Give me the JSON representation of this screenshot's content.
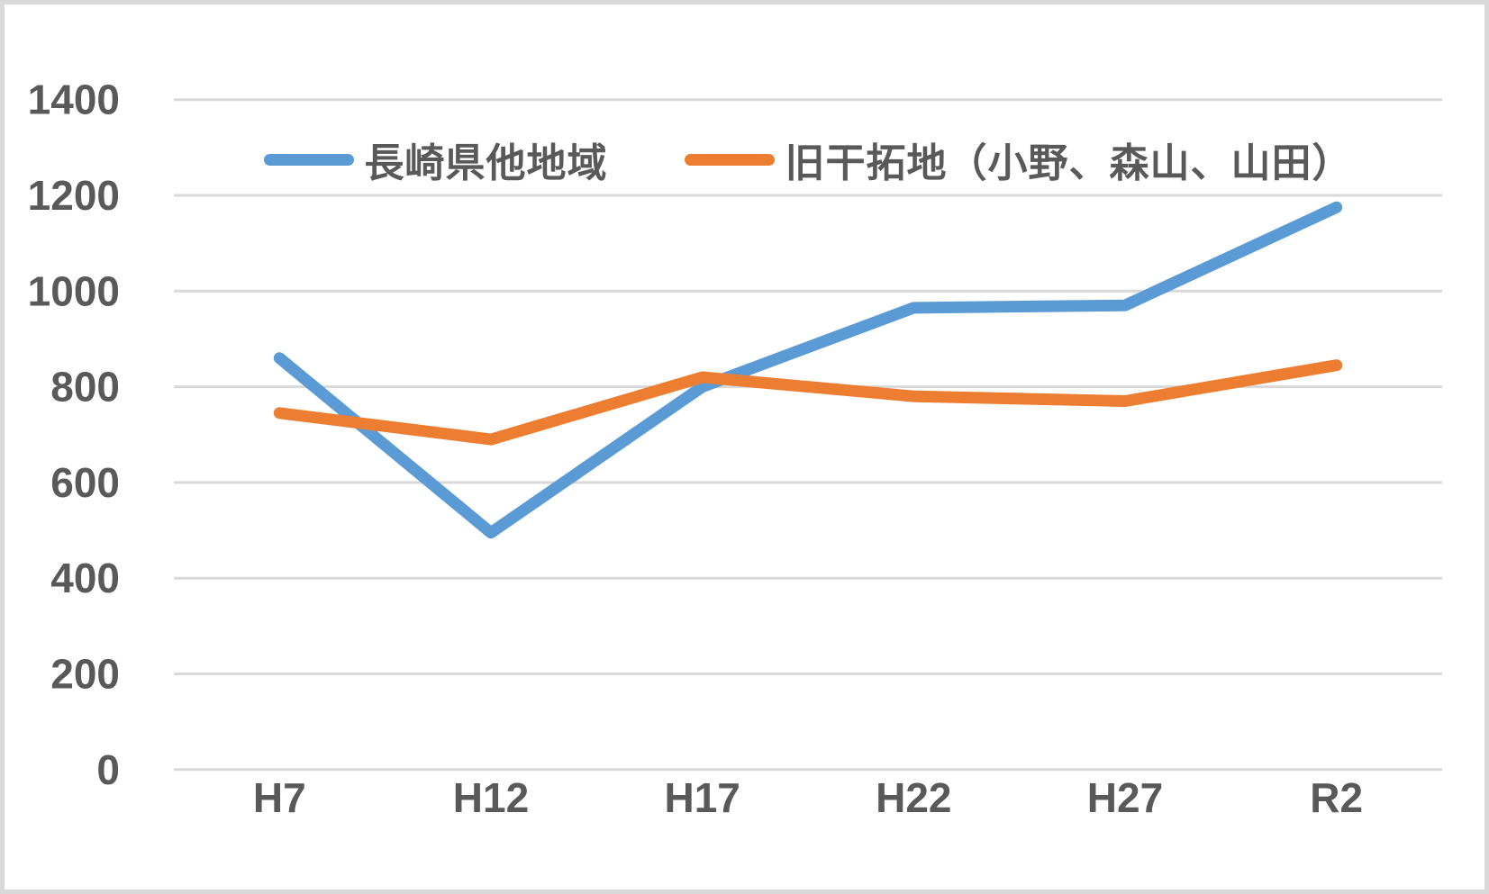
{
  "chart_data": {
    "type": "line",
    "categories": [
      "H7",
      "H12",
      "H17",
      "H22",
      "H27",
      "R2"
    ],
    "series": [
      {
        "name": "長崎県他地域",
        "color": "#5B9BD5",
        "values": [
          860,
          495,
          800,
          965,
          970,
          1175
        ]
      },
      {
        "name": "旧干拓地（小野、森山、山田）",
        "color": "#ED7D31",
        "values": [
          745,
          690,
          820,
          780,
          770,
          845
        ]
      }
    ],
    "title": "",
    "xlabel": "",
    "ylabel": "",
    "ylim": [
      0,
      1400
    ],
    "ytick_step": 200,
    "yticks": [
      "0",
      "200",
      "400",
      "600",
      "800",
      "1000",
      "1200",
      "1400"
    ],
    "grid": true,
    "legend_position": "top-center",
    "line_width": 13
  },
  "colors": {
    "background": "#ffffff",
    "frame_border": "#d9d9d9",
    "gridline": "#d9d9d9",
    "tick_text": "#595959",
    "series_blue": "#5B9BD5",
    "series_orange": "#ED7D31"
  }
}
